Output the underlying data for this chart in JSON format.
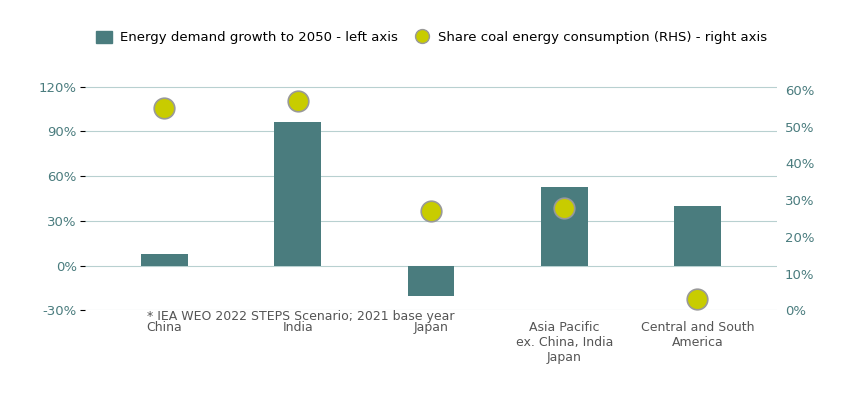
{
  "categories": [
    "China",
    "India",
    "Japan",
    "Asia Pacific\nex. China, India\nJapan",
    "Central and South\nAmerica"
  ],
  "bar_values": [
    8,
    96,
    -20,
    53,
    40
  ],
  "dot_values_rhs": [
    55,
    57,
    27,
    28,
    3
  ],
  "bar_color": "#4a7c7e",
  "dot_color": "#c8cc00",
  "dot_edge_color": "#999999",
  "left_ylim": [
    -30,
    130
  ],
  "right_ylim": [
    0,
    65
  ],
  "left_yticks": [
    -30,
    0,
    30,
    60,
    90,
    120
  ],
  "right_yticks": [
    0,
    10,
    20,
    30,
    40,
    50,
    60
  ],
  "footnote": "* IEA WEO 2022 STEPS Scenario; 2021 base year",
  "legend_bar_label": "Energy demand growth to 2050 - left axis",
  "legend_dot_label": "Share coal energy consumption (RHS) - right axis",
  "grid_color": "#b8d0d0",
  "axis_label_color": "#4a7c7e",
  "tick_label_color": "#555555",
  "background_color": "#ffffff",
  "bar_width": 0.35,
  "dot_size": 220
}
